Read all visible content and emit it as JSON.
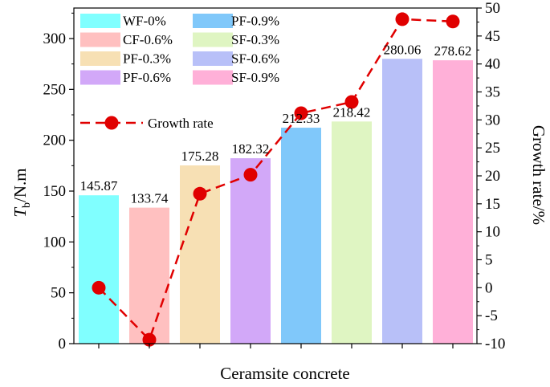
{
  "chart_data": {
    "type": "bar",
    "title": "",
    "xlabel": "Ceramsite concrete",
    "ylabel": "T_b/N.m",
    "ylabel_main": "T",
    "ylabel_sub": "b",
    "ylabel_rest": "/N.m",
    "y2label": "Growth rate/%",
    "ylim": [
      0,
      330
    ],
    "y2lim": [
      -10,
      50
    ],
    "yticks": [
      0,
      50,
      100,
      150,
      200,
      250,
      300
    ],
    "y2ticks": [
      -10,
      -5,
      0,
      5,
      10,
      15,
      20,
      25,
      30,
      35,
      40,
      45,
      50
    ],
    "categories": [
      "WF-0%",
      "CF-0.6%",
      "PF-0.3%",
      "PF-0.6%",
      "PF-0.9%",
      "SF-0.3%",
      "SF-0.6%",
      "SF-0.9%"
    ],
    "values": [
      145.87,
      133.74,
      175.28,
      182.32,
      212.33,
      218.42,
      280.06,
      278.62
    ],
    "value_labels": [
      "145.87",
      "133.74",
      "175.28",
      "182.32",
      "212.33",
      "218.42",
      "280.06",
      "278.62"
    ],
    "colors": [
      "#80ffff",
      "#ffc0c0",
      "#f7e0b4",
      "#d2a8f8",
      "#80c8fa",
      "#dff5c2",
      "#b8c0f8",
      "#ffb0d8"
    ],
    "series": [
      {
        "name": "Growth rate",
        "axis": "right",
        "type": "line",
        "color": "#e00000",
        "values": [
          0,
          -9.3,
          16.8,
          20.2,
          31.2,
          33.2,
          48.0,
          47.6
        ]
      }
    ],
    "legend": {
      "placement": "top-left",
      "bar_entries": [
        "WF-0%",
        "CF-0.6%",
        "PF-0.3%",
        "PF-0.6%",
        "PF-0.9%",
        "SF-0.3%",
        "SF-0.6%",
        "SF-0.9%"
      ],
      "line_entry": "Growth rate"
    },
    "grid": false
  }
}
